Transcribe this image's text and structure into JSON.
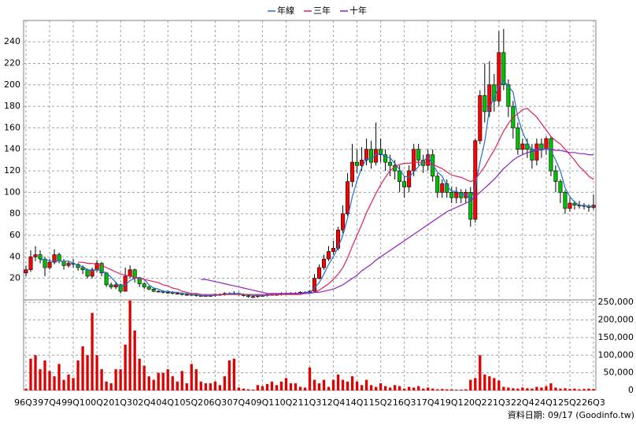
{
  "chart_data": {
    "type": "candlestick",
    "categories": [
      "96Q3",
      null,
      null,
      null,
      null,
      "97Q4",
      null,
      null,
      null,
      null,
      "99Q1",
      null,
      null,
      null,
      null,
      "00Q2",
      null,
      null,
      null,
      null,
      "01Q3",
      null,
      null,
      null,
      null,
      "02Q4",
      null,
      null,
      null,
      null,
      "04Q1",
      null,
      null,
      null,
      null,
      "05Q2",
      null,
      null,
      null,
      null,
      "06Q3",
      null,
      null,
      null,
      null,
      "07Q4",
      null,
      null,
      null,
      null,
      "09Q1",
      null,
      null,
      null,
      null,
      "10Q2",
      null,
      null,
      null,
      null,
      "11Q3",
      null,
      null,
      null,
      null,
      "12Q4",
      null,
      null,
      null,
      null,
      "14Q1",
      null,
      null,
      null,
      null,
      "15Q2",
      null,
      null,
      null,
      null,
      "16Q3",
      null,
      null,
      null,
      null,
      "17Q4",
      null,
      null,
      null,
      null,
      "19Q1",
      null,
      null,
      null,
      null,
      "20Q2",
      null,
      null,
      null,
      null,
      "21Q3",
      null,
      null,
      null,
      null,
      "22Q4",
      null,
      null,
      null,
      null,
      "24Q1",
      null,
      null,
      null,
      null,
      "25Q2",
      null,
      null,
      null,
      null,
      "26Q3"
    ],
    "open": [
      25,
      28,
      40,
      42,
      38,
      30,
      35,
      42,
      36,
      32,
      34,
      33,
      30,
      28,
      22,
      28,
      34,
      25,
      14,
      12,
      14,
      8,
      22,
      28,
      20,
      15,
      12,
      10,
      8,
      8,
      7,
      7,
      6,
      6,
      5,
      5,
      5,
      4,
      4,
      4,
      4,
      5,
      5,
      6,
      6,
      6,
      5,
      4,
      3,
      3,
      4,
      4,
      5,
      5,
      5,
      6,
      6,
      6,
      6,
      7,
      7,
      8,
      20,
      30,
      38,
      45,
      48,
      65,
      80,
      110,
      128,
      125,
      130,
      140,
      128,
      140,
      135,
      128,
      125,
      120,
      110,
      105,
      120,
      140,
      130,
      125,
      135,
      115,
      100,
      108,
      100,
      95,
      100,
      95,
      100,
      75,
      148,
      190,
      175,
      200,
      185,
      230,
      200,
      180,
      160,
      140,
      145,
      140,
      130,
      145,
      140,
      150,
      120,
      110,
      100,
      85,
      90,
      88,
      88,
      87,
      86
    ],
    "high": [
      32,
      46,
      50,
      46,
      40,
      38,
      47,
      44,
      38,
      36,
      38,
      34,
      32,
      29,
      30,
      37,
      35,
      26,
      16,
      17,
      15,
      30,
      32,
      29,
      21,
      16,
      13,
      11,
      9,
      9,
      8,
      8,
      7,
      7,
      6,
      6,
      6,
      5,
      5,
      5,
      6,
      6,
      7,
      7,
      8,
      7,
      6,
      5,
      4,
      5,
      5,
      6,
      6,
      6,
      7,
      7,
      7,
      7,
      8,
      8,
      9,
      24,
      33,
      42,
      50,
      55,
      68,
      88,
      118,
      145,
      140,
      142,
      150,
      148,
      165,
      150,
      140,
      135,
      130,
      125,
      115,
      125,
      145,
      145,
      135,
      140,
      140,
      118,
      112,
      112,
      105,
      105,
      103,
      103,
      105,
      150,
      195,
      220,
      222,
      210,
      250,
      252,
      205,
      185,
      165,
      150,
      150,
      145,
      150,
      150,
      152,
      152,
      125,
      112,
      102,
      95,
      92,
      92,
      90,
      89,
      98
    ],
    "low": [
      22,
      26,
      36,
      34,
      22,
      28,
      33,
      34,
      28,
      30,
      30,
      27,
      24,
      20,
      20,
      26,
      22,
      12,
      10,
      10,
      6,
      8,
      20,
      16,
      12,
      10,
      9,
      7,
      7,
      6,
      6,
      5,
      5,
      4,
      4,
      4,
      3,
      3,
      3,
      3,
      3,
      4,
      4,
      5,
      5,
      4,
      3,
      2,
      2,
      2,
      3,
      3,
      4,
      4,
      4,
      5,
      5,
      5,
      5,
      6,
      6,
      8,
      19,
      28,
      36,
      42,
      46,
      62,
      78,
      105,
      118,
      120,
      125,
      122,
      125,
      128,
      120,
      115,
      112,
      100,
      95,
      100,
      115,
      125,
      118,
      120,
      110,
      95,
      95,
      95,
      90,
      90,
      90,
      90,
      68,
      72,
      145,
      165,
      170,
      175,
      180,
      195,
      170,
      150,
      135,
      135,
      132,
      122,
      125,
      132,
      135,
      115,
      100,
      90,
      80,
      82,
      84,
      85,
      84,
      82,
      84
    ],
    "close": [
      28,
      40,
      42,
      38,
      30,
      35,
      42,
      36,
      32,
      34,
      33,
      30,
      28,
      22,
      28,
      34,
      25,
      14,
      12,
      14,
      8,
      22,
      28,
      20,
      15,
      12,
      10,
      8,
      8,
      7,
      7,
      6,
      6,
      5,
      5,
      5,
      4,
      4,
      4,
      4,
      5,
      5,
      6,
      6,
      6,
      5,
      4,
      3,
      3,
      4,
      4,
      5,
      5,
      5,
      6,
      6,
      6,
      6,
      7,
      7,
      8,
      20,
      30,
      38,
      45,
      48,
      65,
      80,
      110,
      128,
      125,
      130,
      140,
      128,
      140,
      135,
      128,
      125,
      120,
      110,
      105,
      120,
      140,
      130,
      125,
      135,
      115,
      100,
      108,
      100,
      95,
      100,
      95,
      100,
      75,
      148,
      190,
      175,
      200,
      185,
      230,
      200,
      180,
      160,
      140,
      145,
      140,
      130,
      145,
      140,
      150,
      120,
      110,
      100,
      85,
      90,
      88,
      88,
      87,
      86,
      88
    ],
    "up_color": "#ff0000",
    "down_color": "#00c000",
    "series": [
      {
        "name": "年線",
        "color": "#1f6fd0",
        "values": [
          null,
          null,
          null,
          37,
          38,
          36,
          36,
          36,
          36,
          36,
          34,
          32,
          31,
          28,
          27,
          28,
          27,
          25,
          21,
          16,
          12,
          14,
          18,
          20,
          21,
          19,
          14,
          11,
          10,
          8,
          8,
          7,
          7,
          6,
          6,
          5,
          5,
          4,
          4,
          4,
          4,
          5,
          5,
          6,
          6,
          6,
          5,
          5,
          4,
          4,
          4,
          4,
          5,
          5,
          5,
          6,
          6,
          6,
          6,
          7,
          7,
          11,
          16,
          24,
          33,
          40,
          49,
          60,
          76,
          96,
          111,
          123,
          131,
          131,
          135,
          136,
          133,
          132,
          127,
          121,
          115,
          114,
          119,
          124,
          129,
          133,
          126,
          119,
          115,
          106,
          101,
          101,
          98,
          98,
          93,
          105,
          128,
          147,
          178,
          188,
          198,
          204,
          199,
          193,
          170,
          156,
          146,
          139,
          140,
          139,
          141,
          139,
          130,
          120,
          104,
          96,
          91,
          88,
          88,
          87,
          87
        ]
      },
      {
        "name": "三年",
        "color": "#e0205a",
        "values": [
          null,
          null,
          null,
          null,
          null,
          null,
          null,
          null,
          null,
          null,
          null,
          35,
          35,
          34,
          34,
          33,
          32,
          30,
          28,
          26,
          24,
          23,
          22,
          21,
          20,
          19,
          18,
          17,
          16,
          14,
          13,
          11,
          10,
          8,
          7,
          6,
          6,
          5,
          5,
          5,
          5,
          5,
          5,
          5,
          5,
          5,
          5,
          5,
          5,
          5,
          5,
          5,
          5,
          5,
          5,
          5,
          5,
          5,
          5,
          6,
          6,
          7,
          9,
          12,
          15,
          19,
          24,
          30,
          39,
          50,
          60,
          70,
          81,
          90,
          99,
          107,
          114,
          120,
          124,
          126,
          127,
          127,
          128,
          128,
          128,
          127,
          126,
          124,
          122,
          119,
          116,
          115,
          114,
          112,
          110,
          112,
          118,
          124,
          132,
          139,
          148,
          157,
          164,
          170,
          173,
          177,
          178,
          174,
          170,
          164,
          158,
          152,
          148,
          145,
          140,
          135,
          130,
          124,
          120,
          115,
          112
        ]
      },
      {
        "name": "十年",
        "color": "#9020c0",
        "values": [
          null,
          null,
          null,
          null,
          null,
          null,
          null,
          null,
          null,
          null,
          null,
          null,
          null,
          null,
          null,
          null,
          null,
          null,
          null,
          null,
          null,
          null,
          null,
          null,
          null,
          null,
          null,
          null,
          null,
          null,
          null,
          null,
          null,
          null,
          null,
          null,
          null,
          19,
          19,
          18,
          17,
          16,
          15,
          14,
          13,
          12,
          11,
          10,
          9,
          8,
          7,
          6,
          6,
          6,
          6,
          6,
          6,
          6,
          6,
          6,
          6,
          7,
          7,
          8,
          9,
          10,
          12,
          14,
          17,
          20,
          23,
          27,
          30,
          33,
          37,
          40,
          43,
          46,
          49,
          52,
          55,
          58,
          61,
          64,
          67,
          70,
          73,
          76,
          79,
          82,
          84,
          86,
          88,
          90,
          92,
          96,
          100,
          104,
          108,
          112,
          117,
          122,
          126,
          130,
          133,
          135,
          137,
          138,
          139,
          140,
          140,
          140,
          139,
          139,
          138,
          137,
          137,
          136,
          136,
          135,
          135
        ]
      }
    ],
    "ylim": [
      0,
      254
    ],
    "yticks": [
      20,
      40,
      60,
      80,
      100,
      120,
      140,
      160,
      180,
      200,
      220,
      240
    ],
    "grid": true,
    "volume": {
      "color": "#e00000",
      "values": [
        5000,
        90000,
        100000,
        60000,
        85000,
        55000,
        40000,
        75000,
        30000,
        45000,
        35000,
        85000,
        125000,
        100000,
        220000,
        100000,
        60000,
        25000,
        20000,
        60000,
        60000,
        130000,
        255000,
        170000,
        90000,
        70000,
        40000,
        30000,
        50000,
        50000,
        60000,
        40000,
        25000,
        55000,
        20000,
        75000,
        60000,
        25000,
        20000,
        20000,
        25000,
        15000,
        40000,
        85000,
        90000,
        8000,
        5000,
        3000,
        2000,
        15000,
        12000,
        18000,
        25000,
        15000,
        25000,
        35000,
        20000,
        20000,
        10000,
        8000,
        65000,
        30000,
        20000,
        30000,
        10000,
        30000,
        45000,
        30000,
        25000,
        40000,
        25000,
        15000,
        30000,
        15000,
        10000,
        20000,
        12000,
        8000,
        15000,
        12000,
        5000,
        10000,
        8000,
        12000,
        5000,
        8000,
        5000,
        3000,
        4000,
        3000,
        3000,
        2000,
        2000,
        3000,
        30000,
        35000,
        100000,
        45000,
        40000,
        35000,
        28000,
        10000,
        8000,
        6000,
        5000,
        8000,
        6000,
        5000,
        10000,
        8000,
        12000,
        20000,
        8000,
        5000,
        6000,
        4000,
        5000,
        3000,
        4000,
        5000,
        4000
      ],
      "ylim": [
        0,
        257000
      ],
      "yticks": [
        0,
        {
          "value": 50000,
          "label": "50,000"
        },
        {
          "value": 100000,
          "label": "100,000"
        },
        {
          "value": 150000,
          "label": "150,000"
        },
        {
          "value": 200000,
          "label": "200,000"
        },
        {
          "value": 250000,
          "label": "250,000"
        }
      ]
    },
    "footer": "資料日期: 09/17  (Goodinfo.tw)"
  }
}
